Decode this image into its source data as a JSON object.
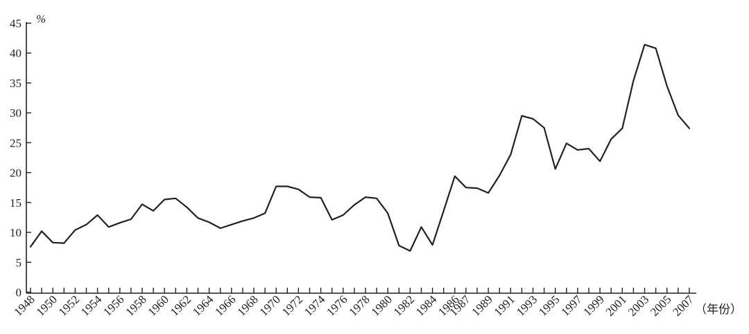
{
  "chart_data": {
    "type": "line",
    "title": "",
    "ylabel": "%",
    "xlabel": "（年份）",
    "ylim": [
      0,
      45
    ],
    "yticks": [
      0,
      5,
      10,
      15,
      20,
      25,
      30,
      35,
      40,
      45
    ],
    "grid": false,
    "legend": "none",
    "line_color": "#231f20",
    "x_tick_labels": [
      "1948",
      "1950",
      "1952",
      "1954",
      "1956",
      "1958",
      "1960",
      "1962",
      "1964",
      "1966",
      "1968",
      "1970",
      "1972",
      "1974",
      "1976",
      "1978",
      "1980",
      "1982",
      "1984",
      "1986",
      "1987",
      "1989",
      "1991",
      "1993",
      "1995",
      "1997",
      "1999",
      "2001",
      "2003",
      "2005",
      "2007"
    ],
    "x": [
      "1948",
      "1949",
      "1950",
      "1951",
      "1952",
      "1953",
      "1954",
      "1955",
      "1956",
      "1957",
      "1958",
      "1959",
      "1960",
      "1961",
      "1962",
      "1963",
      "1964",
      "1965",
      "1966",
      "1967",
      "1968",
      "1969",
      "1970",
      "1971",
      "1972",
      "1973",
      "1974",
      "1975",
      "1976",
      "1977",
      "1978",
      "1979",
      "1980",
      "1981",
      "1982",
      "1983",
      "1984",
      "1985",
      "1986",
      "1987",
      "1988",
      "1989",
      "1990",
      "1991",
      "1992",
      "1993",
      "1994",
      "1995",
      "1996",
      "1997",
      "1998",
      "1999",
      "2000",
      "2001",
      "2002",
      "2003",
      "2004",
      "2005",
      "2006",
      "2007"
    ],
    "series": [
      {
        "values": [
          7.6,
          10.2,
          8.3,
          8.2,
          10.4,
          11.3,
          12.9,
          10.9,
          11.6,
          12.2,
          14.7,
          13.6,
          15.5,
          15.7,
          14.2,
          12.4,
          11.7,
          10.7,
          11.3,
          11.9,
          12.4,
          13.2,
          17.7,
          17.7,
          17.2,
          15.9,
          15.8,
          12.1,
          12.9,
          14.6,
          15.9,
          15.7,
          13.2,
          7.8,
          6.9,
          10.9,
          7.9,
          13.6,
          19.4,
          17.5,
          17.4,
          16.6,
          19.5,
          23.0,
          29.5,
          29.0,
          27.5,
          20.6,
          24.9,
          23.8,
          24.0,
          21.9,
          25.6,
          27.4,
          35.4,
          41.4,
          40.8,
          34.5,
          29.6,
          27.4
        ]
      }
    ]
  }
}
